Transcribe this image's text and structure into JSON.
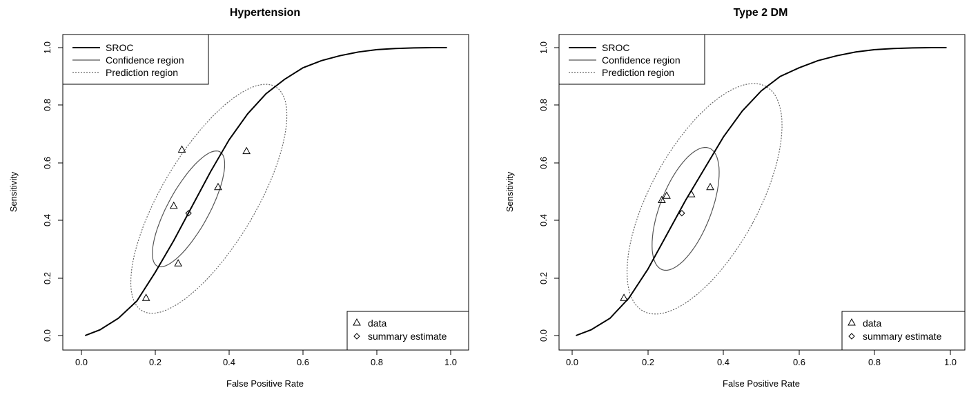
{
  "chart_data": [
    {
      "type": "line",
      "title": "Hypertension",
      "xlabel": "False Positive Rate",
      "ylabel": "Sensitivity",
      "xlim": [
        0,
        1
      ],
      "ylim": [
        0,
        1
      ],
      "xticks": [
        "0.0",
        "0.2",
        "0.4",
        "0.6",
        "0.8",
        "1.0"
      ],
      "yticks": [
        "0.0",
        "0.2",
        "0.4",
        "0.6",
        "0.8",
        "1.0"
      ],
      "grid": false,
      "legend_top": {
        "position": "top-left",
        "entries": [
          {
            "label": "SROC",
            "style": "solid-thick"
          },
          {
            "label": "Confidence region",
            "style": "solid"
          },
          {
            "label": "Prediction region",
            "style": "dotted"
          }
        ]
      },
      "legend_bottom": {
        "position": "bottom-right",
        "entries": [
          {
            "label": "data",
            "marker": "triangle"
          },
          {
            "label": "summary estimate",
            "marker": "diamond"
          }
        ]
      },
      "sroc": {
        "x": [
          0.01,
          0.05,
          0.1,
          0.15,
          0.2,
          0.25,
          0.3,
          0.35,
          0.4,
          0.45,
          0.5,
          0.55,
          0.6,
          0.65,
          0.7,
          0.75,
          0.8,
          0.85,
          0.9,
          0.95,
          0.99
        ],
        "y": [
          0.0,
          0.02,
          0.06,
          0.12,
          0.22,
          0.33,
          0.45,
          0.57,
          0.68,
          0.77,
          0.84,
          0.89,
          0.93,
          0.955,
          0.972,
          0.985,
          0.993,
          0.997,
          0.999,
          1.0,
          1.0
        ]
      },
      "data_points": [
        {
          "x": 0.175,
          "y": 0.13
        },
        {
          "x": 0.25,
          "y": 0.45
        },
        {
          "x": 0.262,
          "y": 0.25
        },
        {
          "x": 0.272,
          "y": 0.645
        },
        {
          "x": 0.37,
          "y": 0.515
        },
        {
          "x": 0.447,
          "y": 0.64
        }
      ],
      "summary_estimate": {
        "x": 0.29,
        "y": 0.425
      },
      "confidence_region": {
        "cx": 0.29,
        "cy": 0.44,
        "rx": 0.07,
        "ry": 0.225,
        "angle": 28
      },
      "prediction_region": {
        "cx": 0.345,
        "cy": 0.475,
        "rx": 0.16,
        "ry": 0.45,
        "angle": 30
      }
    },
    {
      "type": "line",
      "title": "Type 2 DM",
      "xlabel": "False Positive Rate",
      "ylabel": "Sensitivity",
      "xlim": [
        0,
        1
      ],
      "ylim": [
        0,
        1
      ],
      "xticks": [
        "0.0",
        "0.2",
        "0.4",
        "0.6",
        "0.8",
        "1.0"
      ],
      "yticks": [
        "0.0",
        "0.2",
        "0.4",
        "0.6",
        "0.8",
        "1.0"
      ],
      "grid": false,
      "legend_top": {
        "position": "top-left",
        "entries": [
          {
            "label": "SROC",
            "style": "solid-thick"
          },
          {
            "label": "Confidence region",
            "style": "solid"
          },
          {
            "label": "Prediction region",
            "style": "dotted"
          }
        ]
      },
      "legend_bottom": {
        "position": "bottom-right",
        "entries": [
          {
            "label": "data",
            "marker": "triangle"
          },
          {
            "label": "summary estimate",
            "marker": "diamond"
          }
        ]
      },
      "sroc": {
        "x": [
          0.01,
          0.05,
          0.1,
          0.15,
          0.2,
          0.25,
          0.3,
          0.35,
          0.4,
          0.45,
          0.5,
          0.55,
          0.6,
          0.65,
          0.7,
          0.75,
          0.8,
          0.85,
          0.9,
          0.95,
          0.99
        ],
        "y": [
          0.0,
          0.02,
          0.06,
          0.13,
          0.23,
          0.35,
          0.47,
          0.58,
          0.69,
          0.78,
          0.85,
          0.9,
          0.93,
          0.955,
          0.972,
          0.985,
          0.993,
          0.997,
          0.999,
          1.0,
          1.0
        ]
      },
      "data_points": [
        {
          "x": 0.137,
          "y": 0.13
        },
        {
          "x": 0.237,
          "y": 0.47
        },
        {
          "x": 0.25,
          "y": 0.485
        },
        {
          "x": 0.315,
          "y": 0.49
        },
        {
          "x": 0.365,
          "y": 0.515
        }
      ],
      "summary_estimate": {
        "x": 0.29,
        "y": 0.425
      },
      "confidence_region": {
        "cx": 0.3,
        "cy": 0.44,
        "rx": 0.085,
        "ry": 0.225,
        "angle": 20
      },
      "prediction_region": {
        "cx": 0.35,
        "cy": 0.475,
        "rx": 0.18,
        "ry": 0.44,
        "angle": 27
      }
    }
  ]
}
